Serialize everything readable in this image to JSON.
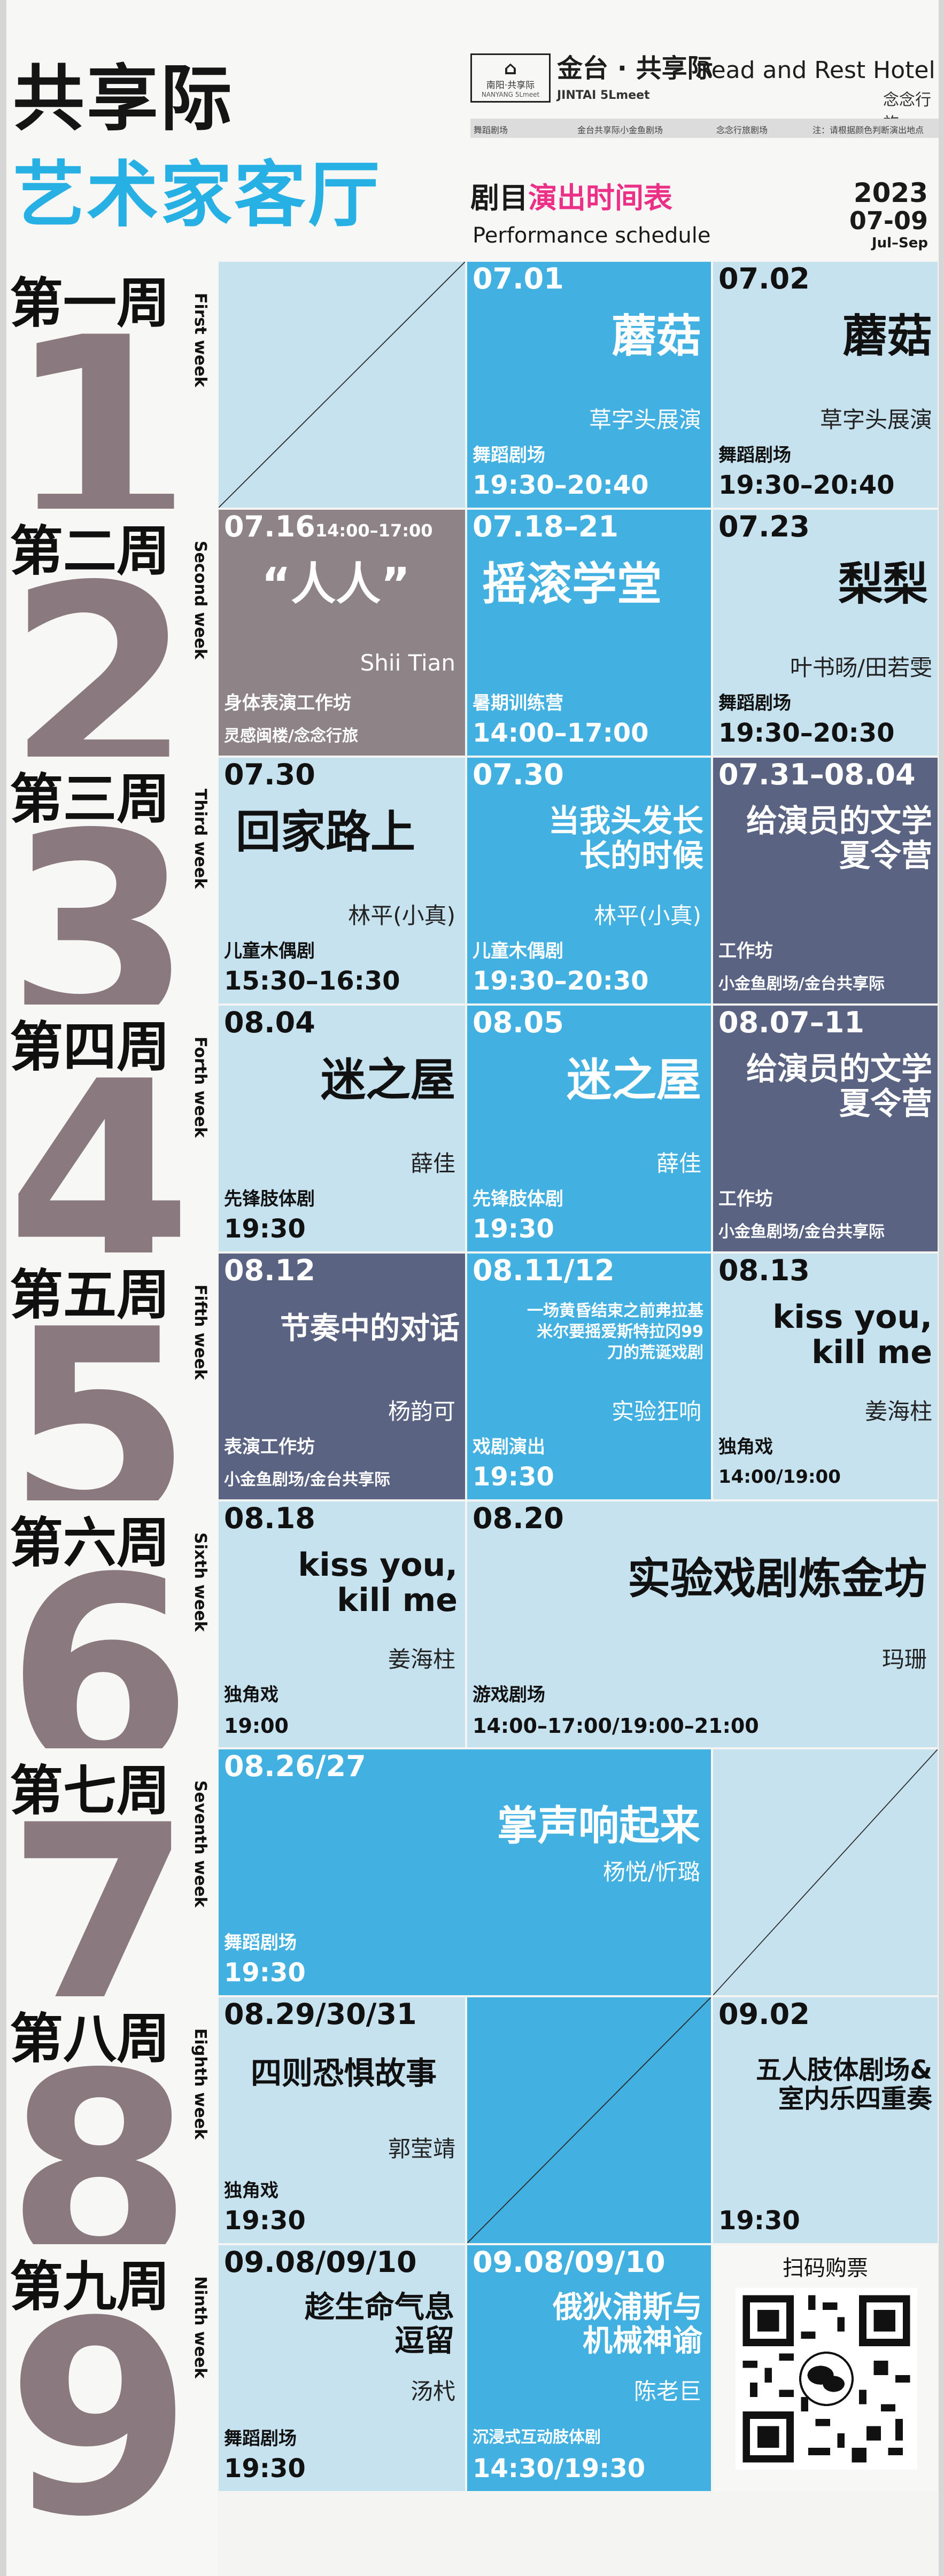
{
  "header": {
    "title_line1": "共享际",
    "title_line2": "艺术家客厅",
    "logo_mark": "南阳·共享际",
    "logo_en": "NANYANG 5Lmeet",
    "hotel_cn": "金台 · 共享际",
    "hotel_en": "Read and Rest Hotel",
    "hotel_sub_en": "JINTAI 5Lmeet",
    "hotel_sub_cn": "念念行旅",
    "strip_texts": [
      "舞蹈剧场",
      "金台共享际小金鱼剧场",
      "念念行旅剧场",
      "注：请根据颜色判断演出地点"
    ],
    "program_cn_a": "剧目",
    "program_cn_b": "演出时间表",
    "program_en": "Performance schedule",
    "year": "2023",
    "months": "07-09",
    "range": "Jul–Sep"
  },
  "weeks": [
    {
      "cn": "第一周",
      "num": "1",
      "en": "First week"
    },
    {
      "cn": "第二周",
      "num": "2",
      "en": "Second week"
    },
    {
      "cn": "第三周",
      "num": "3",
      "en": "Third week"
    },
    {
      "cn": "第四周",
      "num": "4",
      "en": "Forth week"
    },
    {
      "cn": "第五周",
      "num": "5",
      "en": "Fifth week"
    },
    {
      "cn": "第六周",
      "num": "6",
      "en": "Sixth week"
    },
    {
      "cn": "第七周",
      "num": "7",
      "en": "Seventh week"
    },
    {
      "cn": "第八周",
      "num": "8",
      "en": "Eighth week"
    },
    {
      "cn": "第九周",
      "num": "9",
      "en": "Ninth week"
    }
  ],
  "events": {
    "w1": [
      {
        "date": "07.01",
        "title": "蘑菇",
        "author": "草字头展演",
        "type": "舞蹈剧场",
        "schedule": "19:30–20:40"
      },
      {
        "date": "07.02",
        "title": "蘑菇",
        "author": "草字头展演",
        "type": "舞蹈剧场",
        "schedule": "19:30–20:40"
      }
    ],
    "w2": [
      {
        "date": "07.16",
        "time": "14:00–17:00",
        "title": "“人人”",
        "author": "Shii Tian",
        "type": "身体表演工作坊",
        "venue": "灵感闽楼/念念行旅"
      },
      {
        "date": "07.18–21",
        "title": "摇滚学堂",
        "type": "暑期训练营",
        "schedule": "14:00–17:00"
      },
      {
        "date": "07.23",
        "title": "梨梨",
        "author": "叶书旸/田若雯",
        "type": "舞蹈剧场",
        "schedule": "19:30–20:30"
      }
    ],
    "w3": [
      {
        "date": "07.30",
        "title": "回家路上",
        "author": "林平(小真)",
        "type": "儿童木偶剧",
        "schedule": "15:30–16:30"
      },
      {
        "date": "07.30",
        "title_l1": "当我头发长",
        "title_l2": "长的时候",
        "author": "林平(小真)",
        "type": "儿童木偶剧",
        "schedule": "19:30–20:30"
      },
      {
        "date": "07.31–08.04",
        "title_l1": "给演员的文学",
        "title_l2": "夏令营",
        "type": "工作坊",
        "venue": "小金鱼剧场/金台共享际"
      }
    ],
    "w4": [
      {
        "date": "08.04",
        "title": "迷之屋",
        "author": "薛佳",
        "type": "先锋肢体剧",
        "schedule": "19:30"
      },
      {
        "date": "08.05",
        "title": "迷之屋",
        "author": "薛佳",
        "type": "先锋肢体剧",
        "schedule": "19:30"
      },
      {
        "date": "08.07–11",
        "title_l1": "给演员的文学",
        "title_l2": "夏令营",
        "type": "工作坊",
        "venue": "小金鱼剧场/金台共享际"
      }
    ],
    "w5": [
      {
        "date": "08.12",
        "title": "节奏中的对话",
        "author": "杨韵可",
        "type": "表演工作坊",
        "venue": "小金鱼剧场/金台共享际"
      },
      {
        "date": "08.11/12",
        "title_l1": "一场黄昏结束之前弗拉基",
        "title_l2": "米尔要摇爱斯特拉冈99",
        "title_l3": "刀的荒诞戏剧",
        "author": "实验狂响",
        "type": "戏剧演出",
        "schedule": "19:30"
      },
      {
        "date": "08.13",
        "title_l1": "kiss you,",
        "title_l2": "kill me",
        "author": "姜海柱",
        "type": "独角戏",
        "schedule": "14:00/19:00"
      }
    ],
    "w6": [
      {
        "date": "08.18",
        "title_l1": "kiss you,",
        "title_l2": "kill me",
        "author": "姜海柱",
        "type": "独角戏",
        "schedule": "19:00"
      },
      {
        "date": "08.20",
        "title": "实验戏剧炼金坊",
        "author": "玛珊",
        "type": "游戏剧场",
        "schedule": "14:00–17:00/19:00–21:00"
      }
    ],
    "w7": [
      {
        "date": "08.26/27",
        "title": "掌声响起来",
        "author": "杨悦/忻璐",
        "type": "舞蹈剧场",
        "schedule": "19:30"
      }
    ],
    "w8": [
      {
        "date": "08.29/30/31",
        "title": "四则恐惧故事",
        "author": "郭莹靖",
        "type": "独角戏",
        "schedule": "19:30"
      },
      {
        "date": "09.02",
        "title_l1": "五人肢体剧场&",
        "title_l2": "室内乐四重奏",
        "schedule": "19:30"
      }
    ],
    "w9": [
      {
        "date": "09.08/09/10",
        "title_l1": "趁生命气息",
        "title_l2": "逗留",
        "author": "汤杙",
        "type": "舞蹈剧场",
        "schedule": "19:30"
      },
      {
        "date": "09.08/09/10",
        "title_l1": "俄狄浦斯与",
        "title_l2": "机械神谕",
        "author": "陈老巨",
        "type": "沉浸式互动肢体剧",
        "schedule": "14:30/19:30"
      },
      {
        "qr_label": "扫码购票",
        "qr_icon": "wechat-icon",
        "qr_icon_text": "微信"
      }
    ]
  },
  "colors": {
    "light": "#c6e2ef",
    "mid": "#42b1e1",
    "dark": "#5a6381",
    "accent_blue": "#27b0e4",
    "accent_pink": "#ec2f87",
    "number_gray": "#8a7a80"
  }
}
